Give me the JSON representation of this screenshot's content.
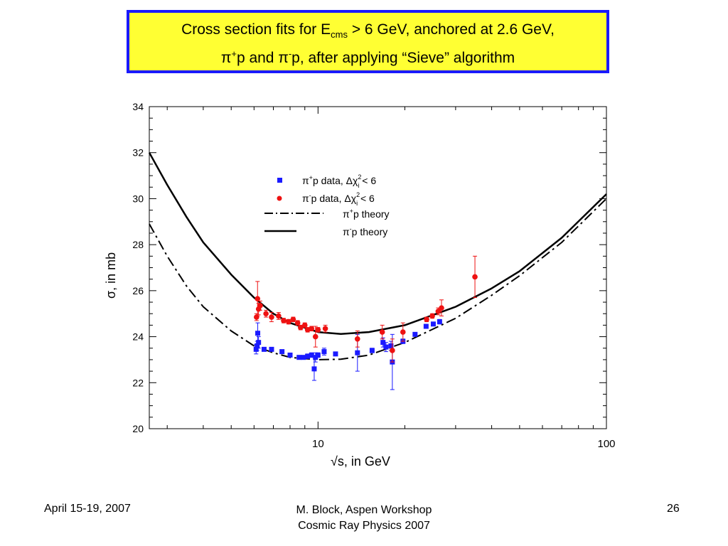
{
  "slide": {
    "title_line1_a": "Cross section fits for E",
    "title_line1_sub": "cms",
    "title_line1_b": " > 6 GeV, anchored at 2.6 GeV,",
    "title_line2_a": "π",
    "title_line2_sup1": "+",
    "title_line2_b": "p and π",
    "title_line2_sup2": "-",
    "title_line2_c": "p, after applying “Sieve” algorithm",
    "footer_left": "April 15-19, 2007",
    "footer_center_line1": "M. Block, Aspen Workshop",
    "footer_center_line2": "Cosmic Ray Physics 2007",
    "footer_right": "26",
    "colors": {
      "title_bg": "#ffff33",
      "title_border": "#1a1aff",
      "pi_plus": "#1a1aff",
      "pi_minus": "#ee1111"
    }
  },
  "chart_data": {
    "type": "scatter",
    "x_scale": "log",
    "xlim": [
      2.6,
      100
    ],
    "ylim": [
      20,
      34
    ],
    "x_ticks": [
      "10",
      "100"
    ],
    "y_ticks": [
      "20",
      "22",
      "24",
      "26",
      "28",
      "30",
      "32",
      "34"
    ],
    "xlabel": "√s, in GeV",
    "ylabel": "σ, in mb",
    "legend_position": "upper-center",
    "legend": {
      "pi_plus_data": {
        "prefix": "π",
        "sup": "+",
        "text": "p data,  Δχ",
        "chi_sup": "2",
        "chi_sub": "i",
        "tail": " < 6"
      },
      "pi_minus_data": {
        "prefix": "π",
        "sup": "-",
        "text": "p data,  Δχ",
        "chi_sup": "2",
        "chi_sub": "i",
        "tail": " < 6"
      },
      "pi_plus_theory": {
        "prefix": "π",
        "sup": "+",
        "text": "p theory"
      },
      "pi_minus_theory": {
        "prefix": "π",
        "sup": "-",
        "text": "p theory"
      }
    },
    "series": [
      {
        "name": "π+p data",
        "marker": "square",
        "color": "#1a1aff",
        "points": [
          {
            "x": 6.1,
            "y": 23.45,
            "err": 0.2
          },
          {
            "x": 6.15,
            "y": 23.6,
            "err": 0.2
          },
          {
            "x": 6.18,
            "y": 24.15,
            "err": 0.45
          },
          {
            "x": 6.22,
            "y": 23.75,
            "err": 0.25
          },
          {
            "x": 6.5,
            "y": 23.45,
            "err": 0.05
          },
          {
            "x": 6.9,
            "y": 23.45,
            "err": 0.05
          },
          {
            "x": 7.5,
            "y": 23.35,
            "err": 0.05
          },
          {
            "x": 8.0,
            "y": 23.2,
            "err": 0.05
          },
          {
            "x": 8.6,
            "y": 23.1,
            "err": 0.05
          },
          {
            "x": 8.9,
            "y": 23.1,
            "err": 0.05
          },
          {
            "x": 9.2,
            "y": 23.15,
            "err": 0.1
          },
          {
            "x": 9.5,
            "y": 23.2,
            "err": 0.1
          },
          {
            "x": 9.7,
            "y": 22.6,
            "err": 0.5
          },
          {
            "x": 9.8,
            "y": 23.1,
            "err": 0.2
          },
          {
            "x": 10.0,
            "y": 23.2,
            "err": 0.1
          },
          {
            "x": 10.5,
            "y": 23.35,
            "err": 0.15
          },
          {
            "x": 11.5,
            "y": 23.25,
            "err": 0.05
          },
          {
            "x": 13.7,
            "y": 23.3,
            "err": 0.8
          },
          {
            "x": 15.4,
            "y": 23.4,
            "err": 0.1
          },
          {
            "x": 16.8,
            "y": 23.75,
            "err": 0.2
          },
          {
            "x": 17.2,
            "y": 23.55,
            "err": 0.2
          },
          {
            "x": 17.9,
            "y": 23.6,
            "err": 0.2
          },
          {
            "x": 18.1,
            "y": 22.9,
            "err": 1.2
          },
          {
            "x": 19.7,
            "y": 23.8,
            "err": 0.1
          },
          {
            "x": 21.7,
            "y": 24.1,
            "err": 0.05
          },
          {
            "x": 23.7,
            "y": 24.45,
            "err": 0.05
          },
          {
            "x": 25.1,
            "y": 24.55,
            "err": 0.05
          },
          {
            "x": 26.4,
            "y": 24.65,
            "err": 0.1
          }
        ]
      },
      {
        "name": "π-p data",
        "marker": "circle",
        "color": "#ee1111",
        "points": [
          {
            "x": 6.12,
            "y": 24.85,
            "err": 0.15
          },
          {
            "x": 6.17,
            "y": 25.65,
            "err": 0.75
          },
          {
            "x": 6.22,
            "y": 25.2,
            "err": 0.25
          },
          {
            "x": 6.3,
            "y": 25.35,
            "err": 0.2
          },
          {
            "x": 6.6,
            "y": 25.0,
            "err": 0.15
          },
          {
            "x": 6.9,
            "y": 24.85,
            "err": 0.2
          },
          {
            "x": 7.3,
            "y": 24.9,
            "err": 0.15
          },
          {
            "x": 7.6,
            "y": 24.7,
            "err": 0.1
          },
          {
            "x": 7.9,
            "y": 24.65,
            "err": 0.1
          },
          {
            "x": 8.2,
            "y": 24.75,
            "err": 0.1
          },
          {
            "x": 8.5,
            "y": 24.6,
            "err": 0.1
          },
          {
            "x": 8.7,
            "y": 24.4,
            "err": 0.1
          },
          {
            "x": 9.0,
            "y": 24.5,
            "err": 0.1
          },
          {
            "x": 9.2,
            "y": 24.3,
            "err": 0.1
          },
          {
            "x": 9.5,
            "y": 24.35,
            "err": 0.1
          },
          {
            "x": 9.8,
            "y": 24.0,
            "err": 0.45
          },
          {
            "x": 10.0,
            "y": 24.3,
            "err": 0.1
          },
          {
            "x": 10.6,
            "y": 24.35,
            "err": 0.15
          },
          {
            "x": 13.7,
            "y": 23.9,
            "err": 0.35
          },
          {
            "x": 16.7,
            "y": 24.2,
            "err": 0.3
          },
          {
            "x": 18.1,
            "y": 23.4,
            "err": 0.5
          },
          {
            "x": 19.7,
            "y": 24.2,
            "err": 0.4
          },
          {
            "x": 23.8,
            "y": 24.75,
            "err": 0.1
          },
          {
            "x": 24.9,
            "y": 24.9,
            "err": 0.1
          },
          {
            "x": 26.1,
            "y": 25.1,
            "err": 0.15
          },
          {
            "x": 26.8,
            "y": 25.25,
            "err": 0.35
          },
          {
            "x": 35.0,
            "y": 26.6,
            "err": 0.9
          }
        ]
      },
      {
        "name": "π+p theory",
        "line_style": "dash-dot",
        "color": "#000000",
        "points": [
          {
            "x": 2.6,
            "y": 28.9
          },
          {
            "x": 3.0,
            "y": 27.5
          },
          {
            "x": 3.5,
            "y": 26.2
          },
          {
            "x": 4.0,
            "y": 25.3
          },
          {
            "x": 5.0,
            "y": 24.25
          },
          {
            "x": 6.0,
            "y": 23.6
          },
          {
            "x": 7.0,
            "y": 23.3
          },
          {
            "x": 8.0,
            "y": 23.1
          },
          {
            "x": 10.0,
            "y": 23.0
          },
          {
            "x": 12.0,
            "y": 23.02
          },
          {
            "x": 15.0,
            "y": 23.2
          },
          {
            "x": 20.0,
            "y": 23.75
          },
          {
            "x": 30.0,
            "y": 24.8
          },
          {
            "x": 40.0,
            "y": 25.8
          },
          {
            "x": 50.0,
            "y": 26.65
          },
          {
            "x": 70.0,
            "y": 28.1
          },
          {
            "x": 100.0,
            "y": 30.0
          }
        ]
      },
      {
        "name": "π-p theory",
        "line_style": "solid",
        "color": "#000000",
        "points": [
          {
            "x": 2.6,
            "y": 32.0
          },
          {
            "x": 3.0,
            "y": 30.6
          },
          {
            "x": 3.5,
            "y": 29.2
          },
          {
            "x": 4.0,
            "y": 28.1
          },
          {
            "x": 5.0,
            "y": 26.7
          },
          {
            "x": 6.0,
            "y": 25.7
          },
          {
            "x": 7.0,
            "y": 25.0
          },
          {
            "x": 8.0,
            "y": 24.6
          },
          {
            "x": 10.0,
            "y": 24.2
          },
          {
            "x": 12.0,
            "y": 24.12
          },
          {
            "x": 15.0,
            "y": 24.2
          },
          {
            "x": 20.0,
            "y": 24.5
          },
          {
            "x": 30.0,
            "y": 25.3
          },
          {
            "x": 40.0,
            "y": 26.1
          },
          {
            "x": 50.0,
            "y": 26.85
          },
          {
            "x": 70.0,
            "y": 28.3
          },
          {
            "x": 100.0,
            "y": 30.2
          }
        ]
      }
    ]
  }
}
